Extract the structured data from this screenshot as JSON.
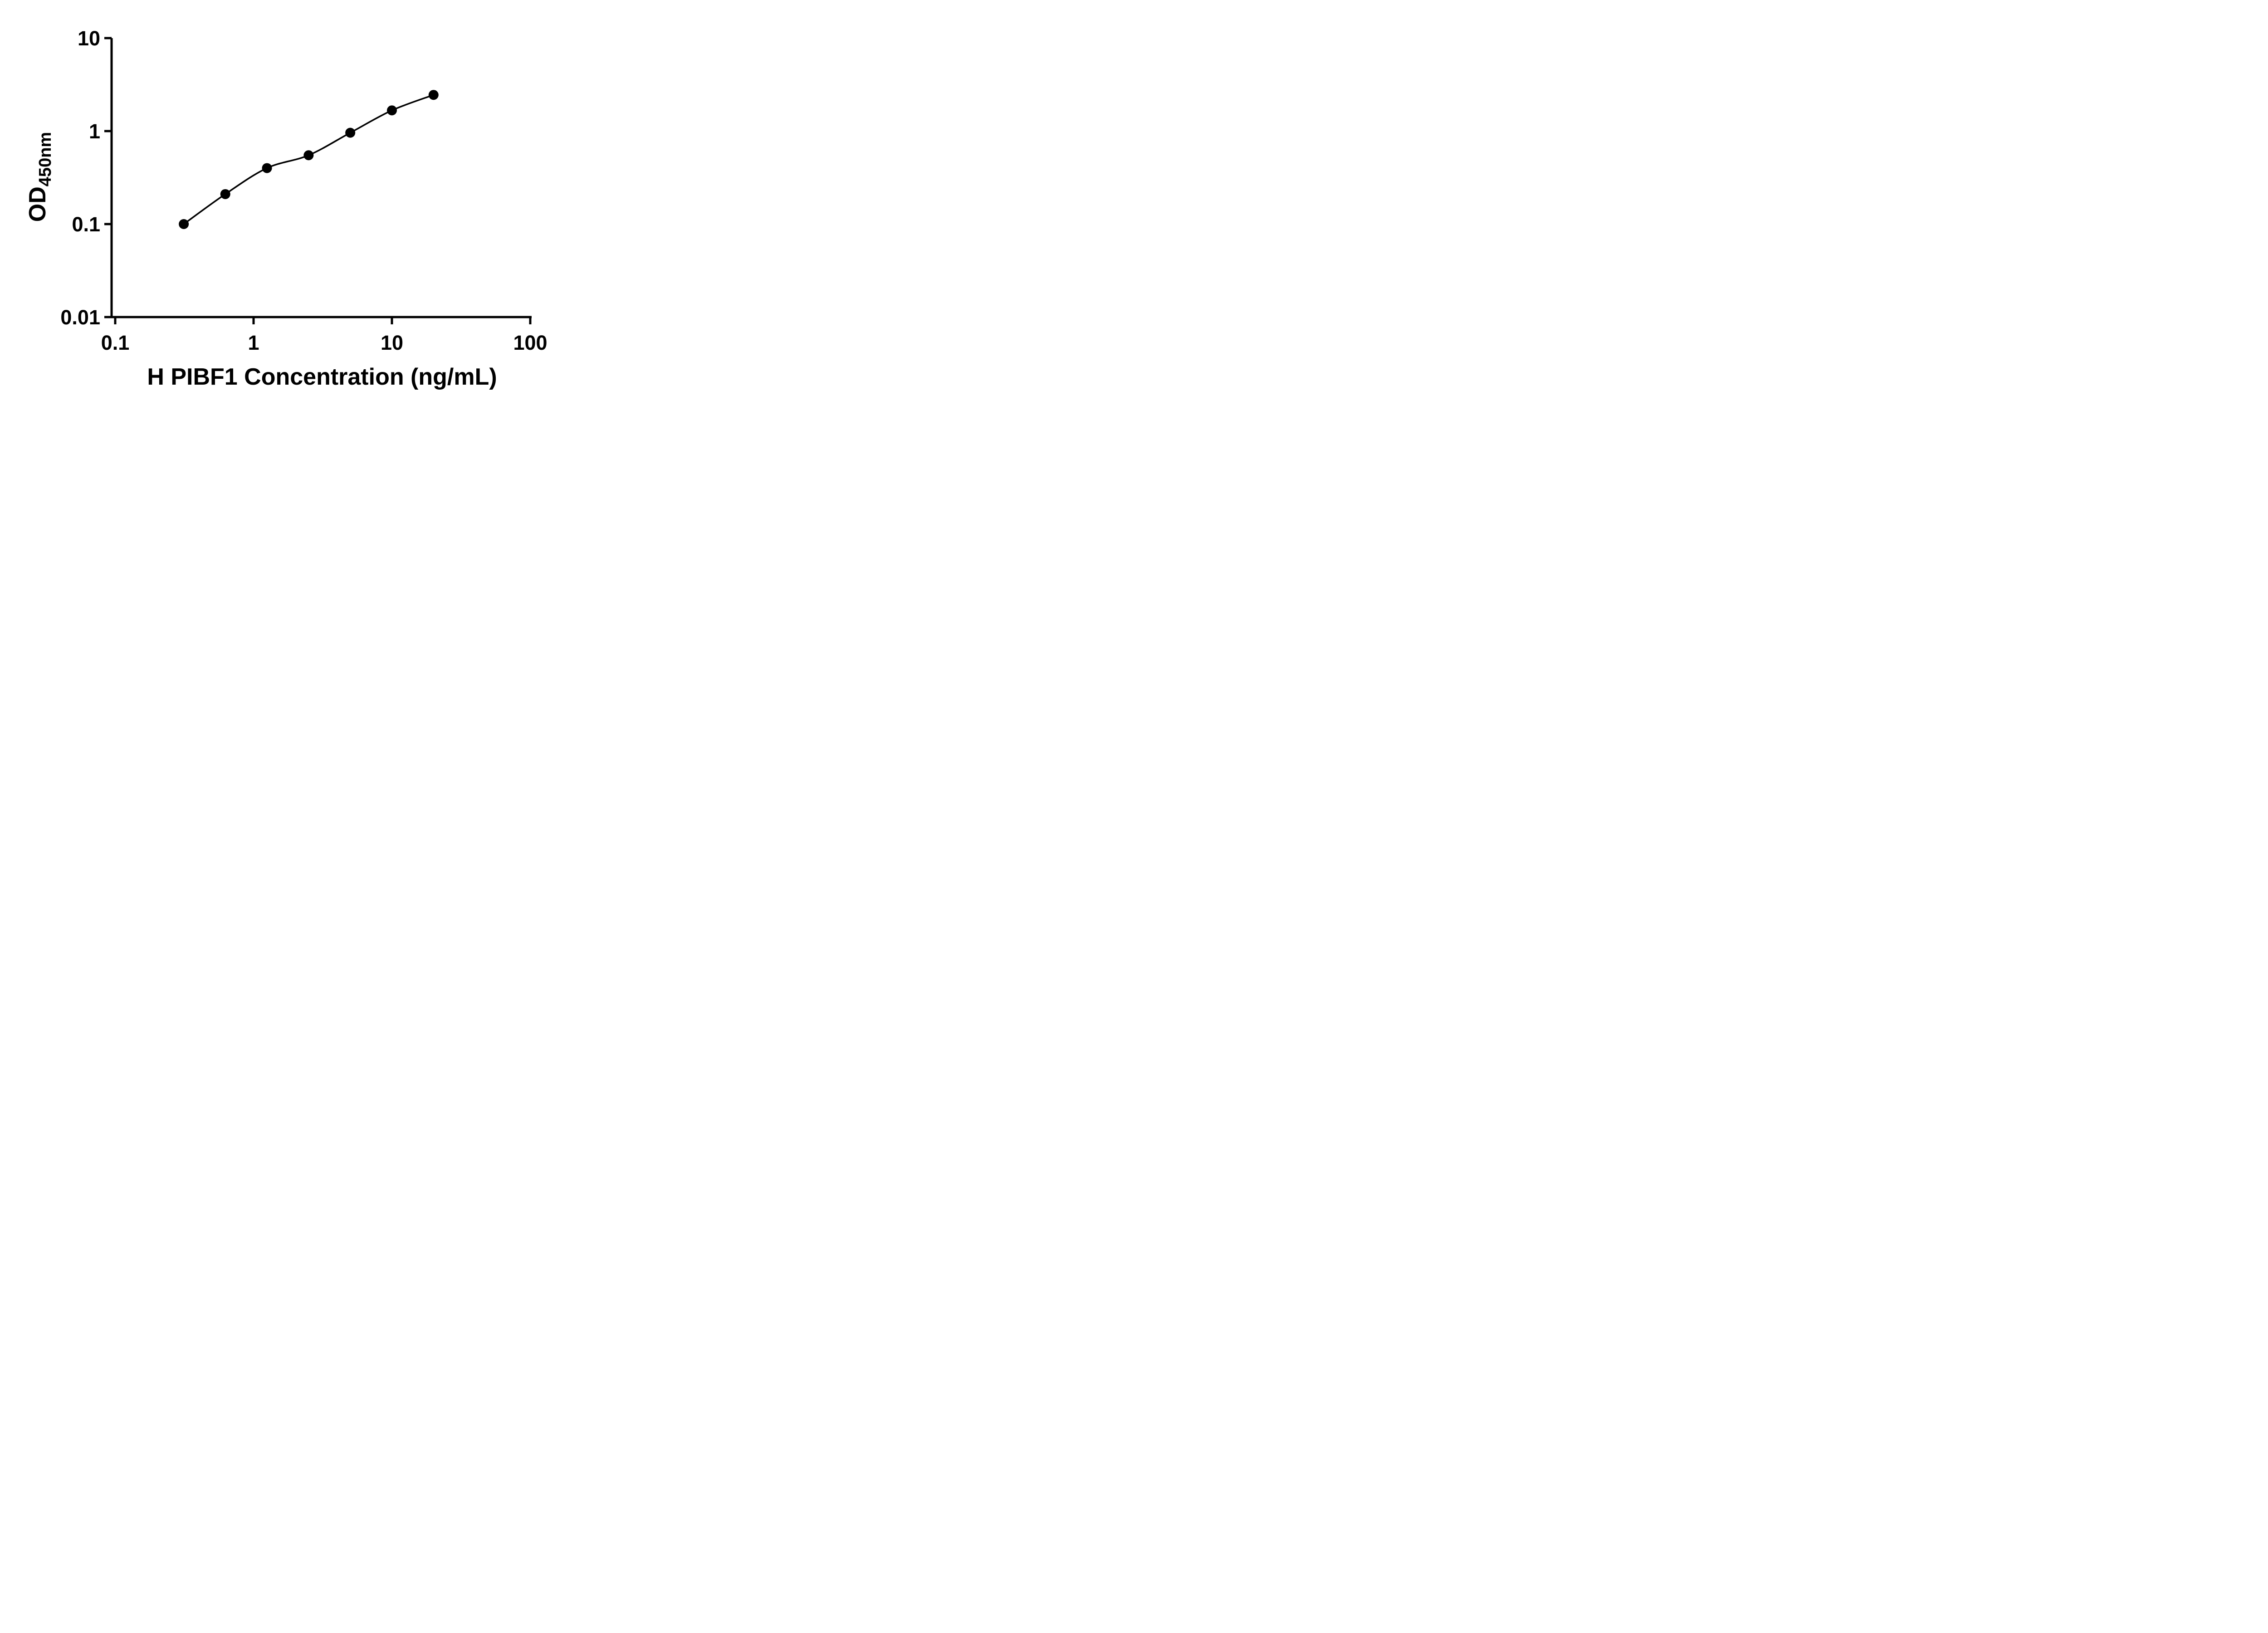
{
  "chart_data": {
    "type": "scatter",
    "x_scale": "log",
    "y_scale": "log",
    "x": [
      0.313,
      0.625,
      1.25,
      2.5,
      5,
      10,
      20
    ],
    "y": [
      0.1,
      0.21,
      0.4,
      0.55,
      0.96,
      1.67,
      2.45
    ],
    "xlabel": "H PIBF1 Concentration (ng/mL)",
    "ylabel_main": "OD",
    "ylabel_sub": "450nm",
    "xlim": [
      0.1,
      100
    ],
    "ylim": [
      0.01,
      10
    ],
    "x_ticks": [
      "0.1",
      "1",
      "10",
      "100"
    ],
    "y_ticks": [
      "0.01",
      "0.1",
      "1",
      "10"
    ],
    "grid": false,
    "legend": "none",
    "has_fit_curve": true,
    "marker_color": "#000000",
    "line_color": "#000000",
    "axis_color": "#000000"
  }
}
